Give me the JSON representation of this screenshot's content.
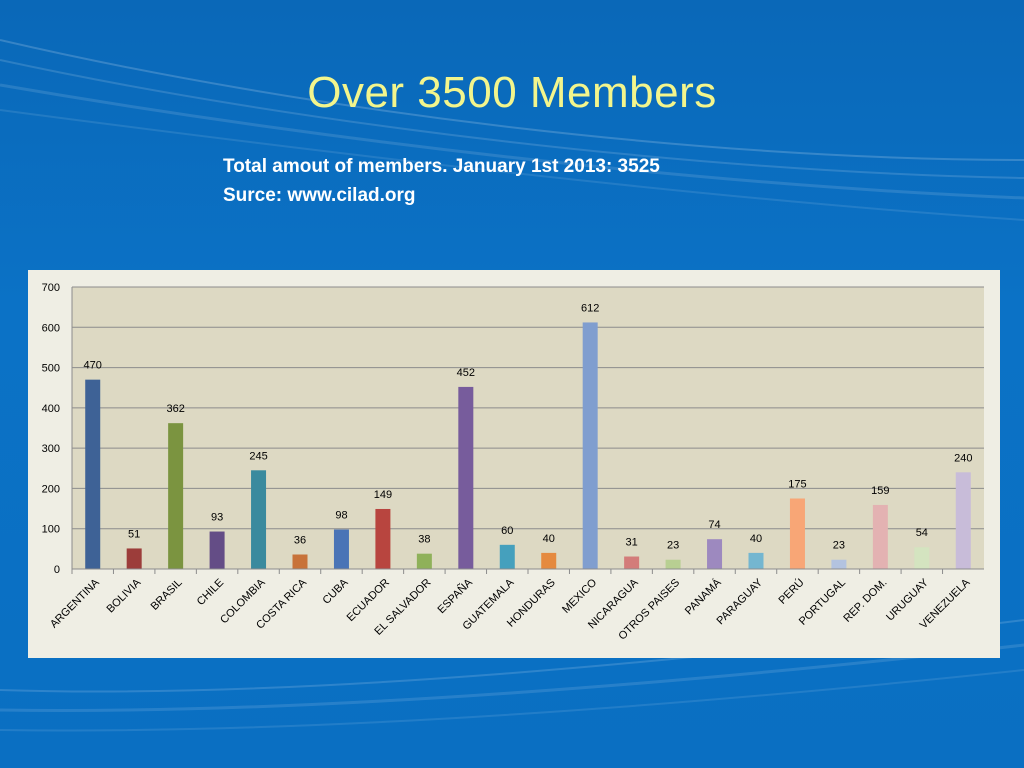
{
  "slide": {
    "title": "Over 3500 Members",
    "subtitle_line1": "Total  amout of members. January 1st 2013: 3525",
    "subtitle_line2": "Surce: www.cilad.org"
  },
  "colors": {
    "background": "#0b6fc2",
    "title": "#f3f58c",
    "plot_area": "#ddd9c3",
    "panel": "#efeee4"
  },
  "chart_data": {
    "type": "bar",
    "title": "",
    "xlabel": "",
    "ylabel": "",
    "ylim": [
      0,
      700
    ],
    "yticks": [
      0,
      100,
      200,
      300,
      400,
      500,
      600,
      700
    ],
    "grid": true,
    "legend": "none",
    "categories": [
      "ARGENTINA",
      "BOLIVIA",
      "BRASIL",
      "CHILE",
      "COLOMBIA",
      "COSTA RICA",
      "CUBA",
      "ECUADOR",
      "EL SALVADOR",
      "ESPAÑA",
      "GUATEMALA",
      "HONDURAS",
      "MEXICO",
      "NICARAGUA",
      "OTROS PAISES",
      "PANAMÁ",
      "PARAGUAY",
      "PERÚ",
      "PORTUGAL",
      "REP. DOM.",
      "URUGUAY",
      "VENEZUELA"
    ],
    "values": [
      470,
      51,
      362,
      93,
      245,
      36,
      98,
      149,
      38,
      452,
      60,
      40,
      612,
      31,
      23,
      74,
      40,
      175,
      23,
      159,
      54,
      240
    ],
    "bar_colors": [
      "#3e6296",
      "#9c3d3a",
      "#7b9440",
      "#644d86",
      "#3a8a9e",
      "#c8733a",
      "#4a74b6",
      "#b8453f",
      "#8fb15a",
      "#775c9c",
      "#45a0bd",
      "#e58a3f",
      "#809ecf",
      "#d37c7a",
      "#b8cf92",
      "#9d89bf",
      "#74b6d0",
      "#f8a676",
      "#b3c3e0",
      "#e3b2b2",
      "#d4e4c0",
      "#c8bcd9"
    ]
  }
}
